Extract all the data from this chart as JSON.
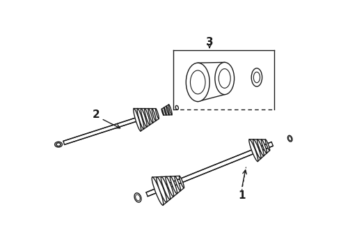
{
  "bg_color": "#ffffff",
  "line_color": "#1a1a1a",
  "fig_width": 4.9,
  "fig_height": 3.6,
  "dpi": 100
}
